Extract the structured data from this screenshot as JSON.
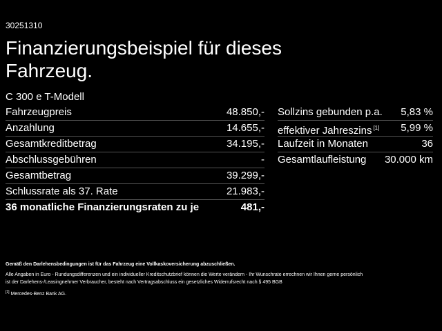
{
  "header": {
    "id": "30251310",
    "title": "Finanzierungsbeispiel für dieses Fahrzeug.",
    "model": "C 300 e T-Modell"
  },
  "left_table": {
    "rows": [
      {
        "label": "Fahrzeugpreis",
        "value": "48.850,-"
      },
      {
        "label": "Anzahlung",
        "value": "14.655,-"
      },
      {
        "label": "Gesamtkreditbetrag",
        "value": "34.195,-"
      },
      {
        "label": "Abschlussgebühren",
        "value": "-"
      },
      {
        "label": "Gesamtbetrag",
        "value": "39.299,-"
      },
      {
        "label": "Schlussrate als 37. Rate",
        "value": "21.983,-"
      },
      {
        "label": "36 monatliche Finanzierungsraten zu je",
        "value": "481,-"
      }
    ]
  },
  "right_table": {
    "rows": [
      {
        "label": "Sollzins gebunden p.a.",
        "value": "5,83 %"
      },
      {
        "label": "effektiver Jahreszins",
        "note": "[1]",
        "value": "5,99 %"
      },
      {
        "label": "Laufzeit in Monaten",
        "value": "36"
      },
      {
        "label": "Gesamtlaufleistung",
        "value": "30.000 km"
      }
    ]
  },
  "footnotes": {
    "bold": "Gemäß den Darlehensbedingungen ist für das Fahrzeug eine Vollkaskoversicherung abzuschließen.",
    "lines": [
      "Alle Angaben in Euro - Rundungsdifferenzen und ein individueller Kreditschutzbrief können die Werte verändern - Ihr Wunschrate errechnen wir Ihnen gerne persönlich",
      "ist der Darlehens-/Leasingnehmer Verbraucher, besteht nach Vertragsabschluss ein gesetzliches Widerrufsrecht nach § 495 BGB"
    ],
    "ref": {
      "mark": "[1]",
      "text": "Mercedes-Benz Bank AG."
    }
  }
}
